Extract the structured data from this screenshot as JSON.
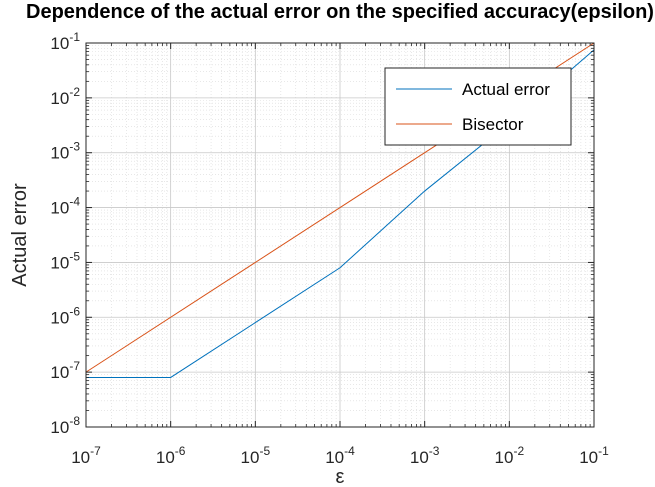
{
  "chart_data": {
    "type": "line",
    "title": "Dependence of the actual error on the specified accuracy(epsilon)",
    "xlabel": "ε",
    "ylabel": "Actual error",
    "x_scale": "log",
    "y_scale": "log",
    "xlim": [
      1e-07,
      0.1
    ],
    "ylim": [
      1e-08,
      0.1
    ],
    "x_ticks": [
      1e-07,
      1e-06,
      1e-05,
      0.0001,
      0.001,
      0.01,
      0.1
    ],
    "y_ticks": [
      1e-08,
      1e-07,
      1e-06,
      1e-05,
      0.0001,
      0.001,
      0.01,
      0.1
    ],
    "x_tick_labels": [
      {
        "base": "10",
        "exp": "-7"
      },
      {
        "base": "10",
        "exp": "-6"
      },
      {
        "base": "10",
        "exp": "-5"
      },
      {
        "base": "10",
        "exp": "-4"
      },
      {
        "base": "10",
        "exp": "-3"
      },
      {
        "base": "10",
        "exp": "-2"
      },
      {
        "base": "10",
        "exp": "-1"
      }
    ],
    "y_tick_labels": [
      {
        "base": "10",
        "exp": "-8"
      },
      {
        "base": "10",
        "exp": "-7"
      },
      {
        "base": "10",
        "exp": "-6"
      },
      {
        "base": "10",
        "exp": "-5"
      },
      {
        "base": "10",
        "exp": "-4"
      },
      {
        "base": "10",
        "exp": "-3"
      },
      {
        "base": "10",
        "exp": "-2"
      },
      {
        "base": "10",
        "exp": "-1"
      }
    ],
    "grid": true,
    "minor_grid": true,
    "legend_position": "top-right",
    "series": [
      {
        "name": "Actual error",
        "color": "#0072BD",
        "x": [
          1e-07,
          1e-06,
          1e-05,
          0.0001,
          0.001,
          0.01,
          0.1
        ],
        "y": [
          8e-08,
          8e-08,
          8e-07,
          8e-06,
          0.0002,
          0.0035,
          0.075
        ]
      },
      {
        "name": "Bisector",
        "color": "#D95319",
        "x": [
          1e-07,
          0.1
        ],
        "y": [
          1e-07,
          0.1
        ]
      }
    ]
  }
}
